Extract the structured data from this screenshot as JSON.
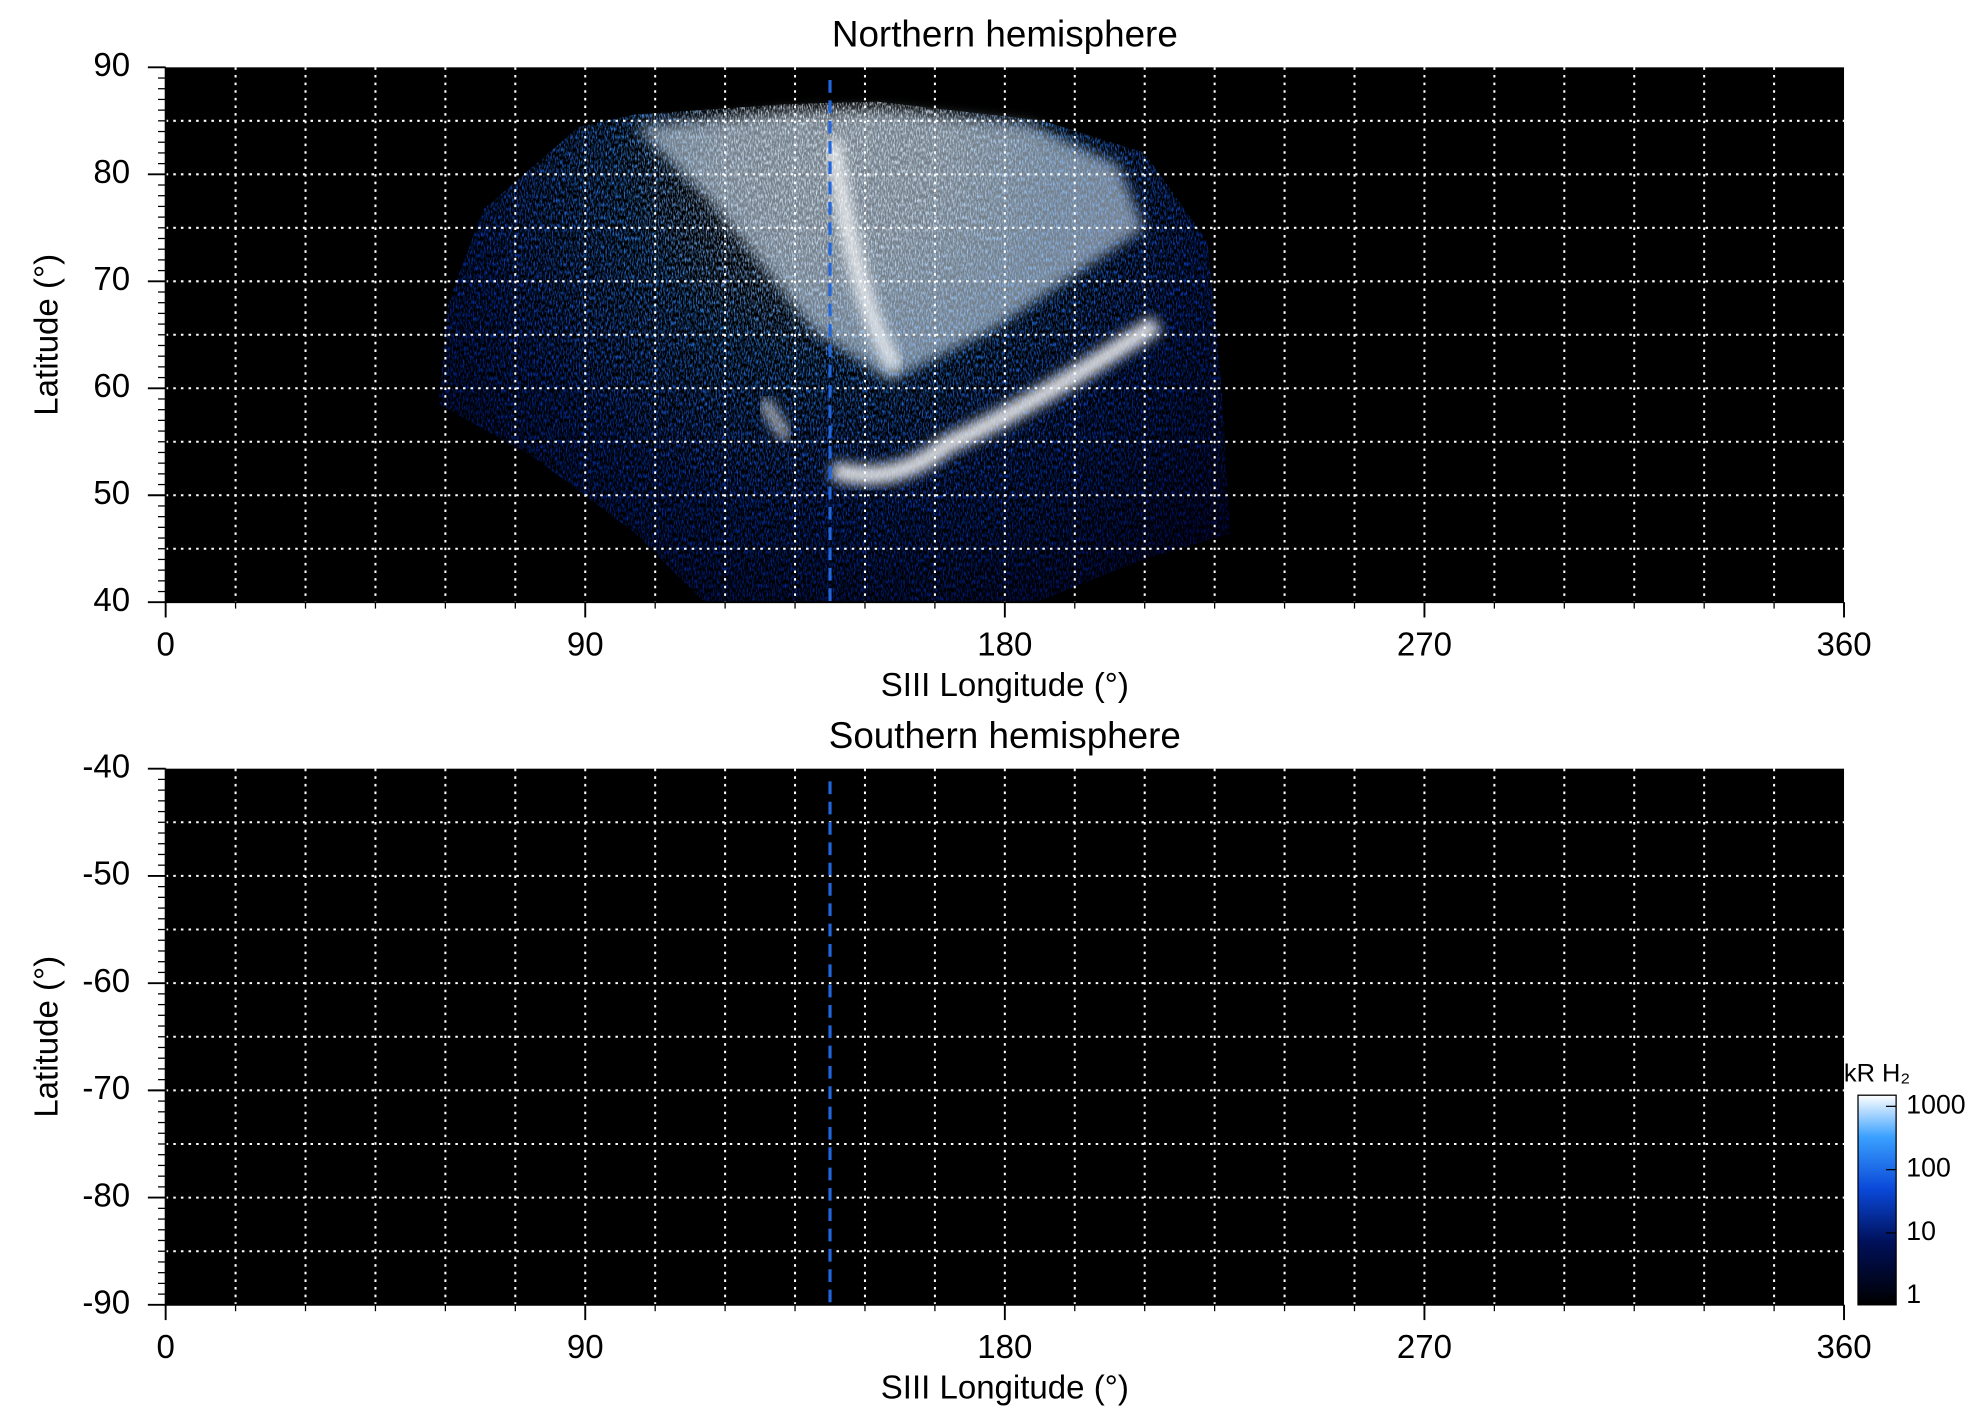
{
  "chart_data": [
    {
      "type": "heatmap",
      "title": "Northern hemisphere",
      "xlabel": "SIII Longitude (°)",
      "ylabel": "Latitude (°)",
      "xlim": [
        0,
        360
      ],
      "xticks": [
        0,
        90,
        180,
        270,
        360
      ],
      "ylim": [
        40,
        90
      ],
      "yticks": [
        40,
        50,
        60,
        70,
        80,
        90
      ],
      "grid": {
        "x": 15,
        "y": 5
      },
      "minor_ticks": {
        "x": 15,
        "y": 1
      },
      "reference_line": 142.5,
      "reference_color": "#2266dd"
    },
    {
      "type": "heatmap",
      "title": "Southern hemisphere",
      "xlabel": "SIII Longitude (°)",
      "ylabel": "Latitude (°)",
      "xlim": [
        0,
        360
      ],
      "xticks": [
        0,
        90,
        180,
        270,
        360
      ],
      "ylim": [
        -90,
        -40
      ],
      "yticks": [
        -40,
        -50,
        -60,
        -70,
        -80,
        -90
      ],
      "grid": {
        "x": 15,
        "y": 5
      },
      "minor_ticks": {
        "x": 15,
        "y": 1
      },
      "reference_line": 142.5,
      "reference_color": "#2266dd",
      "colorbar": {
        "label": "kR H₂",
        "log": true,
        "lim": [
          0.73,
          1500
        ],
        "ticks": [
          1,
          10,
          100,
          1000
        ]
      }
    }
  ]
}
